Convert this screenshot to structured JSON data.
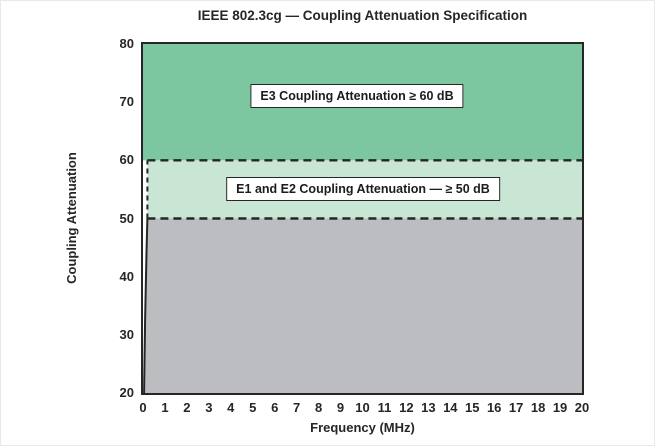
{
  "chart_data": {
    "type": "area",
    "title": "IEEE 802.3cg — Coupling Attenuation Specification",
    "xlabel": "Frequency (MHz)",
    "ylabel": "Coupling Attenuation",
    "xlim": [
      0,
      20
    ],
    "ylim": [
      20,
      80
    ],
    "x_ticks": [
      0,
      1,
      2,
      3,
      4,
      5,
      6,
      7,
      8,
      9,
      10,
      11,
      12,
      13,
      14,
      15,
      16,
      17,
      18,
      19,
      20
    ],
    "y_ticks": [
      20,
      30,
      40,
      50,
      60,
      70,
      80
    ],
    "grid": false,
    "legend": null,
    "regions": [
      {
        "name": "e3-region",
        "label": "E3 Coupling Attenuation ≥ 60 dB",
        "y_range": [
          60,
          80
        ],
        "x_start_top": 0,
        "x_start_bottom": 0,
        "color": "#7cc7a0"
      },
      {
        "name": "e1-e2-region",
        "label": "E1 and E2 Coupling Attenuation — ≥ 50 dB",
        "y_range": [
          50,
          60
        ],
        "x_start_top": 0.2,
        "x_start_bottom": 0.2,
        "color": "#c9e6d5"
      },
      {
        "name": "below-spec-region",
        "label": "",
        "y_range": [
          20,
          50
        ],
        "x_start_top": 0.2,
        "x_start_bottom": 0.05,
        "color": "#bbbdc0"
      }
    ],
    "boundary_lines": [
      {
        "y": 60,
        "x_range": [
          0.2,
          20
        ],
        "style": "dashed"
      },
      {
        "y": 50,
        "x_range": [
          0.2,
          20
        ],
        "style": "dashed"
      },
      {
        "x": 0.2,
        "y_range": [
          50,
          60
        ],
        "style": "dashed"
      }
    ],
    "spec_curve": {
      "from": [
        0.2,
        50
      ],
      "to": [
        0.05,
        20
      ],
      "style": "solid"
    }
  },
  "colors": {
    "line": "#262626",
    "e3_green": "#7cc7a0",
    "e1_e2_green": "#c9e6d5",
    "below_spec_gray": "#bbbdc0",
    "background": "#ffffff"
  }
}
